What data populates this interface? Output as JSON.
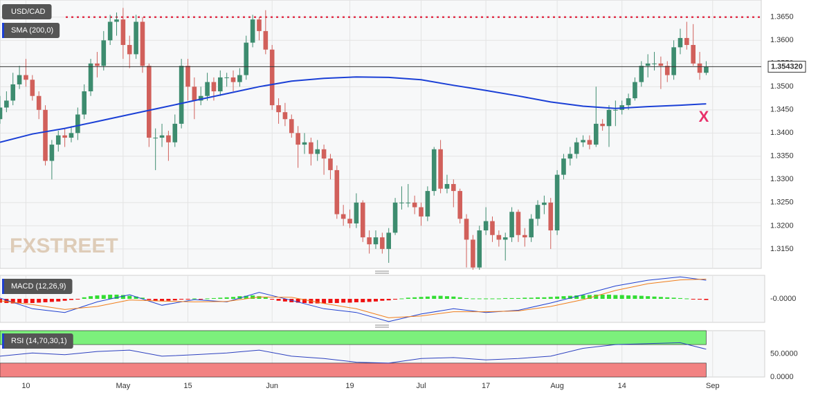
{
  "chart_data": [
    {
      "type": "candlestick",
      "title": "USD/CAD",
      "up_color": "#3d8c6f",
      "down_color": "#d1605b",
      "candles": [
        [
          1.343,
          1.348,
          1.342,
          1.3455
        ],
        [
          1.3455,
          1.349,
          1.3445,
          1.347
        ],
        [
          1.347,
          1.353,
          1.346,
          1.3505
        ],
        [
          1.3505,
          1.3545,
          1.3495,
          1.3525
        ],
        [
          1.3525,
          1.356,
          1.35,
          1.3515
        ],
        [
          1.3515,
          1.3525,
          1.347,
          1.348
        ],
        [
          1.348,
          1.349,
          1.343,
          1.345
        ],
        [
          1.345,
          1.346,
          1.333,
          1.334
        ],
        [
          1.334,
          1.3385,
          1.33,
          1.3375
        ],
        [
          1.3375,
          1.3405,
          1.336,
          1.3395
        ],
        [
          1.3395,
          1.341,
          1.337,
          1.339
        ],
        [
          1.339,
          1.3415,
          1.338,
          1.34
        ],
        [
          1.34,
          1.3455,
          1.3385,
          1.344
        ],
        [
          1.344,
          1.3505,
          1.343,
          1.349
        ],
        [
          1.349,
          1.356,
          1.348,
          1.355
        ],
        [
          1.355,
          1.3575,
          1.352,
          1.3545
        ],
        [
          1.3545,
          1.362,
          1.3535,
          1.36
        ],
        [
          1.36,
          1.3655,
          1.359,
          1.364
        ],
        [
          1.364,
          1.366,
          1.361,
          1.3645
        ],
        [
          1.3645,
          1.367,
          1.356,
          1.359
        ],
        [
          1.359,
          1.361,
          1.354,
          1.357
        ],
        [
          1.357,
          1.3655,
          1.356,
          1.364
        ],
        [
          1.364,
          1.365,
          1.353,
          1.3545
        ],
        [
          1.3545,
          1.355,
          1.337,
          1.339
        ],
        [
          1.339,
          1.341,
          1.332,
          1.339
        ],
        [
          1.339,
          1.342,
          1.337,
          1.3395
        ],
        [
          1.3395,
          1.3405,
          1.334,
          1.338
        ],
        [
          1.338,
          1.344,
          1.337,
          1.342
        ],
        [
          1.342,
          1.356,
          1.341,
          1.3545
        ],
        [
          1.3545,
          1.356,
          1.347,
          1.35
        ],
        [
          1.35,
          1.352,
          1.343,
          1.347
        ],
        [
          1.347,
          1.35,
          1.346,
          1.348
        ],
        [
          1.348,
          1.353,
          1.347,
          1.351
        ],
        [
          1.351,
          1.352,
          1.347,
          1.349
        ],
        [
          1.349,
          1.3535,
          1.348,
          1.352
        ],
        [
          1.352,
          1.353,
          1.35,
          1.352
        ],
        [
          1.352,
          1.3535,
          1.349,
          1.351
        ],
        [
          1.351,
          1.354,
          1.35,
          1.3525
        ],
        [
          1.3525,
          1.361,
          1.3515,
          1.3595
        ],
        [
          1.3595,
          1.3655,
          1.3585,
          1.3645
        ],
        [
          1.3645,
          1.365,
          1.36,
          1.362
        ],
        [
          1.362,
          1.3665,
          1.357,
          1.358
        ],
        [
          1.358,
          1.359,
          1.345,
          1.346
        ],
        [
          1.346,
          1.3475,
          1.342,
          1.3445
        ],
        [
          1.3445,
          1.3465,
          1.3415,
          1.343
        ],
        [
          1.343,
          1.344,
          1.339,
          1.34
        ],
        [
          1.34,
          1.3415,
          1.3325,
          1.3375
        ],
        [
          1.3375,
          1.34,
          1.3355,
          1.338
        ],
        [
          1.338,
          1.339,
          1.333,
          1.3355
        ],
        [
          1.3355,
          1.3385,
          1.334,
          1.3365
        ],
        [
          1.3365,
          1.3375,
          1.331,
          1.3345
        ],
        [
          1.3345,
          1.3355,
          1.33,
          1.332
        ],
        [
          1.332,
          1.333,
          1.3215,
          1.3225
        ],
        [
          1.3225,
          1.3245,
          1.32,
          1.3215
        ],
        [
          1.3215,
          1.3235,
          1.3195,
          1.3205
        ],
        [
          1.3205,
          1.327,
          1.3195,
          1.325
        ],
        [
          1.325,
          1.3255,
          1.3165,
          1.3175
        ],
        [
          1.3175,
          1.319,
          1.314,
          1.316
        ],
        [
          1.316,
          1.319,
          1.315,
          1.3175
        ],
        [
          1.3175,
          1.3185,
          1.314,
          1.315
        ],
        [
          1.315,
          1.3195,
          1.312,
          1.3185
        ],
        [
          1.3185,
          1.326,
          1.318,
          1.325
        ],
        [
          1.325,
          1.3285,
          1.3235,
          1.325
        ],
        [
          1.325,
          1.329,
          1.324,
          1.325
        ],
        [
          1.325,
          1.3265,
          1.3225,
          1.324
        ],
        [
          1.324,
          1.325,
          1.32,
          1.322
        ],
        [
          1.322,
          1.3285,
          1.321,
          1.3275
        ],
        [
          1.3275,
          1.337,
          1.3265,
          1.3365
        ],
        [
          1.3365,
          1.3385,
          1.327,
          1.328
        ],
        [
          1.328,
          1.331,
          1.327,
          1.329
        ],
        [
          1.329,
          1.33,
          1.324,
          1.3275
        ],
        [
          1.3275,
          1.328,
          1.3205,
          1.3215
        ],
        [
          1.3215,
          1.3225,
          1.311,
          1.317
        ],
        [
          1.317,
          1.318,
          1.3105,
          1.311
        ],
        [
          1.311,
          1.32,
          1.3105,
          1.319
        ],
        [
          1.319,
          1.324,
          1.318,
          1.321
        ],
        [
          1.321,
          1.322,
          1.3165,
          1.318
        ],
        [
          1.318,
          1.319,
          1.3155,
          1.317
        ],
        [
          1.317,
          1.3185,
          1.3125,
          1.3175
        ],
        [
          1.3175,
          1.324,
          1.3165,
          1.323
        ],
        [
          1.323,
          1.3235,
          1.3165,
          1.318
        ],
        [
          1.318,
          1.3195,
          1.3155,
          1.3175
        ],
        [
          1.3175,
          1.3225,
          1.3165,
          1.3215
        ],
        [
          1.3215,
          1.3255,
          1.32,
          1.3245
        ],
        [
          1.3245,
          1.3265,
          1.3225,
          1.325
        ],
        [
          1.325,
          1.326,
          1.315,
          1.319
        ],
        [
          1.319,
          1.332,
          1.318,
          1.331
        ],
        [
          1.331,
          1.3355,
          1.33,
          1.3345
        ],
        [
          1.3345,
          1.337,
          1.333,
          1.3355
        ],
        [
          1.3355,
          1.339,
          1.3345,
          1.338
        ],
        [
          1.338,
          1.3395,
          1.337,
          1.3385
        ],
        [
          1.3385,
          1.3395,
          1.3365,
          1.3375
        ],
        [
          1.3375,
          1.35,
          1.337,
          1.342
        ],
        [
          1.342,
          1.343,
          1.3405,
          1.3415
        ],
        [
          1.3415,
          1.346,
          1.337,
          1.345
        ],
        [
          1.345,
          1.347,
          1.3415,
          1.345
        ],
        [
          1.345,
          1.347,
          1.344,
          1.346
        ],
        [
          1.346,
          1.3485,
          1.345,
          1.3475
        ],
        [
          1.3475,
          1.352,
          1.347,
          1.351
        ],
        [
          1.351,
          1.3555,
          1.35,
          1.3545
        ],
        [
          1.3545,
          1.357,
          1.352,
          1.355
        ],
        [
          1.355,
          1.3575,
          1.3535,
          1.355
        ],
        [
          1.355,
          1.3565,
          1.3495,
          1.3545
        ],
        [
          1.3545,
          1.3555,
          1.351,
          1.3525
        ],
        [
          1.3525,
          1.36,
          1.3515,
          1.3585
        ],
        [
          1.3585,
          1.3625,
          1.357,
          1.3605
        ],
        [
          1.3605,
          1.364,
          1.358,
          1.359
        ],
        [
          1.359,
          1.3635,
          1.3545,
          1.355
        ],
        [
          1.355,
          1.3575,
          1.3515,
          1.353
        ],
        [
          1.353,
          1.3555,
          1.3525,
          1.3543
        ]
      ],
      "overlay": {
        "name": "SMA (200,0)",
        "color": "#1a3fd6",
        "x": [
          0,
          5,
          10,
          15,
          20,
          25,
          30,
          35,
          40,
          45,
          50,
          55,
          60,
          65,
          70,
          75,
          80,
          85,
          90,
          95,
          100,
          105,
          109
        ],
        "values": [
          1.338,
          1.3398,
          1.341,
          1.3425,
          1.344,
          1.3455,
          1.347,
          1.3485,
          1.35,
          1.3512,
          1.3518,
          1.3521,
          1.352,
          1.3515,
          1.3503,
          1.3492,
          1.348,
          1.3467,
          1.3458,
          1.3453,
          1.3457,
          1.346,
          1.3463
        ]
      },
      "hline": {
        "value": 1.365,
        "color": "#e0324b"
      },
      "last_price": {
        "value": 1.35432,
        "label": "1.354320"
      },
      "annotation": "X",
      "watermark": "FXSTREET",
      "xlim": [
        0,
        117.5
      ],
      "ylim": [
        1.3108,
        1.3687
      ],
      "yticks": [
        {
          "value": 1.365,
          "label": "1.3650"
        },
        {
          "value": 1.36,
          "label": "1.3600"
        },
        {
          "value": 1.355,
          "label": "1.3550"
        },
        {
          "value": 1.35,
          "label": "1.3500"
        },
        {
          "value": 1.345,
          "label": "1.3450"
        },
        {
          "value": 1.34,
          "label": "1.3400"
        },
        {
          "value": 1.335,
          "label": "1.3350"
        },
        {
          "value": 1.33,
          "label": "1.3300"
        },
        {
          "value": 1.325,
          "label": "1.3250"
        },
        {
          "value": 1.32,
          "label": "1.3200"
        },
        {
          "value": 1.315,
          "label": "1.3150"
        }
      ],
      "xticks": [
        {
          "value": 4,
          "label": "10"
        },
        {
          "value": 19,
          "label": "May"
        },
        {
          "value": 29,
          "label": "15"
        },
        {
          "value": 42,
          "label": "Jun"
        },
        {
          "value": 54,
          "label": "19"
        },
        {
          "value": 65,
          "label": "Jul"
        },
        {
          "value": 75,
          "label": "17"
        },
        {
          "value": 86,
          "label": "Aug"
        },
        {
          "value": 96,
          "label": "14"
        },
        {
          "value": 110,
          "label": "Sep"
        }
      ],
      "grid": true
    },
    {
      "type": "macd",
      "title": "MACD (12,26,9)",
      "xlim": [
        0,
        117.5
      ],
      "ylim": [
        -0.0062,
        0.0062
      ],
      "yticks": [
        {
          "value": 0,
          "label": "-0.0000"
        }
      ],
      "histogram": [
        -0.001,
        -0.0011,
        -0.0012,
        -0.0012,
        -0.0011,
        -0.0011,
        -0.001,
        -0.0009,
        -0.0008,
        -0.0007,
        -0.0005,
        -0.0003,
        -0.0001,
        0.0004,
        0.0007,
        0.0009,
        0.001,
        0.0011,
        0.0011,
        0.001,
        0.0008,
        0.0006,
        0.0003,
        -0.0003,
        -0.0005,
        -0.0006,
        -0.0005,
        -0.0004,
        -0.0002,
        -0.0001,
        0.0001,
        -0.0001,
        0.0001,
        0.0002,
        0.0003,
        0.0004,
        0.0005,
        0.0007,
        0.0008,
        0.0009,
        0.0007,
        0.0004,
        -0.0002,
        -0.0005,
        -0.0007,
        -0.0009,
        -0.001,
        -0.0011,
        -0.0012,
        -0.0012,
        -0.0012,
        -0.0011,
        -0.0011,
        -0.001,
        -0.001,
        -0.0009,
        -0.0009,
        -0.0008,
        -0.0007,
        -0.0005,
        -0.0004,
        -0.0002,
        0.0001,
        0.0003,
        0.0004,
        0.0005,
        0.0006,
        0.0008,
        0.0008,
        0.0007,
        0.0006,
        0.0004,
        0.0002,
        0.0001,
        0.0001,
        0.0001,
        0.0001,
        0.0001,
        0.0002,
        0.0002,
        0.0002,
        0.0003,
        0.0003,
        0.0004,
        0.0004,
        0.0005,
        0.0006,
        0.0007,
        0.0008,
        0.0009,
        0.001,
        0.001,
        0.0011,
        0.0011,
        0.0011,
        0.001,
        0.001,
        0.0009,
        0.0009,
        0.0008,
        0.0007,
        0.0006,
        0.0005,
        0.0004,
        0.0003,
        0.0002,
        0.0001,
        -0.0001,
        -0.0002,
        -0.0003
      ],
      "up_color": "#33dd33",
      "down_color": "#ee1111",
      "x": [
        0,
        5,
        10,
        15,
        20,
        25,
        30,
        35,
        40,
        45,
        50,
        55,
        60,
        65,
        70,
        75,
        80,
        85,
        90,
        95,
        100,
        105,
        109
      ],
      "series": [
        {
          "color": "#1f3fd0",
          "values": [
            0.0002,
            -0.0026,
            -0.0036,
            -0.0008,
            0.0011,
            -0.0017,
            -0.0002,
            -0.0008,
            0.0017,
            -0.0004,
            -0.0026,
            -0.0036,
            -0.006,
            -0.004,
            -0.0026,
            -0.0036,
            -0.003,
            -0.0011,
            0.0011,
            0.0034,
            0.0049,
            0.0058,
            0.0049
          ]
        },
        {
          "color": "#f07d1a",
          "values": [
            -0.0005,
            -0.0015,
            -0.0028,
            -0.002,
            -0.0003,
            -0.0006,
            -0.0008,
            -0.0007,
            0.0005,
            0.0004,
            -0.0012,
            -0.0026,
            -0.005,
            -0.0045,
            -0.0034,
            -0.0034,
            -0.0032,
            -0.002,
            -0.0002,
            0.0022,
            0.004,
            0.005,
            0.0052
          ]
        }
      ]
    },
    {
      "type": "rsi",
      "title": "RSI (14,70,30,1)",
      "xlim": [
        0,
        117.5
      ],
      "ylim": [
        0,
        100
      ],
      "yticks": [
        {
          "value": 0,
          "label": "0.0000"
        },
        {
          "value": 50,
          "label": "50.0000"
        }
      ],
      "bands": [
        {
          "from": 70,
          "to": 100,
          "color": "#7cf07c"
        },
        {
          "from": 0,
          "to": 30,
          "color": "#f28282"
        }
      ],
      "x": [
        0,
        5,
        10,
        15,
        20,
        25,
        30,
        35,
        40,
        45,
        50,
        55,
        60,
        65,
        70,
        75,
        80,
        85,
        90,
        95,
        100,
        105,
        109
      ],
      "series": [
        {
          "color": "#2b3fbf",
          "values": [
            45,
            52,
            48,
            55,
            58,
            45,
            48,
            52,
            58,
            45,
            40,
            32,
            30,
            40,
            42,
            37,
            40,
            45,
            62,
            70,
            72,
            74,
            60
          ]
        }
      ]
    }
  ]
}
